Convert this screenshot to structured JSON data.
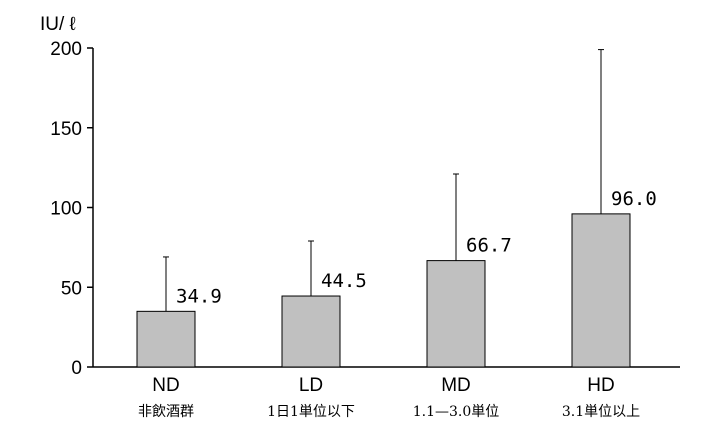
{
  "chart_data": {
    "type": "bar",
    "ylabel": "IU/ ℓ",
    "ylim": [
      0,
      200
    ],
    "yticks": [
      0,
      50,
      100,
      150,
      200
    ],
    "categories": [
      "ND",
      "LD",
      "MD",
      "HD"
    ],
    "sublabels": [
      "非飲酒群",
      "1日1単位以下",
      "1.1—3.0単位",
      "3.1単位以上"
    ],
    "values": [
      34.9,
      44.5,
      66.7,
      96.0
    ],
    "value_labels": [
      "34.9",
      "44.5",
      "66.7",
      "96.0"
    ],
    "error_upper": [
      69,
      79,
      121,
      199
    ],
    "bar_color": "#c0c0c0",
    "grid": false,
    "error_bars": "upper-only"
  }
}
